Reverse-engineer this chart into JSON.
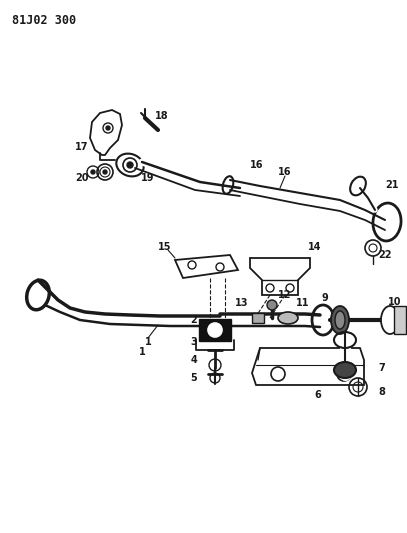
{
  "title": "81J02 300",
  "bg": "#ffffff",
  "lc": "#1a1a1a",
  "figsize": [
    4.07,
    5.33
  ],
  "dpi": 100
}
